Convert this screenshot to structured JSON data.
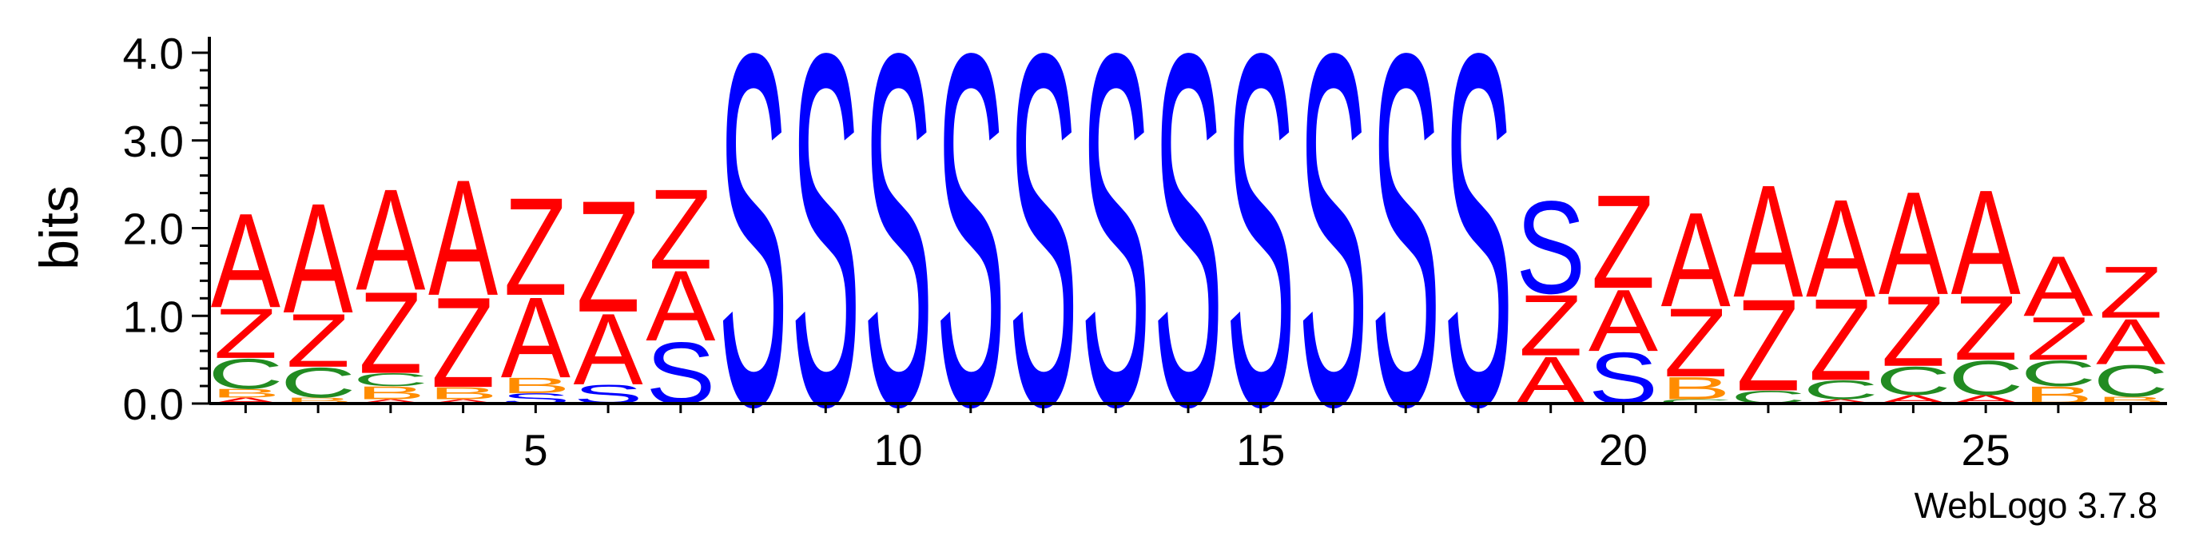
{
  "chart_data": {
    "type": "sequence-logo",
    "title": "",
    "xlabel": "",
    "ylabel": "bits",
    "ylim": [
      0,
      4.0
    ],
    "y_ticks": [
      "0.0",
      "1.0",
      "2.0",
      "3.0",
      "4.0"
    ],
    "x_range": [
      1,
      27
    ],
    "x_ticks": [
      "5",
      "10",
      "15",
      "20",
      "25"
    ],
    "colors": {
      "A": "#ff0000",
      "Z": "#ff0000",
      "S": "#0000ff",
      "C": "#228b22",
      "B": "#ff8c00"
    },
    "positions": [
      {
        "pos": 1,
        "stack": [
          {
            "letter": "A",
            "bits": 0.07
          },
          {
            "letter": "B",
            "bits": 0.1
          },
          {
            "letter": "C",
            "bits": 0.35
          },
          {
            "letter": "Z",
            "bits": 0.58
          },
          {
            "letter": "A",
            "bits": 1.1
          }
        ]
      },
      {
        "pos": 2,
        "stack": [
          {
            "letter": "B",
            "bits": 0.07
          },
          {
            "letter": "C",
            "bits": 0.35
          },
          {
            "letter": "Z",
            "bits": 0.62
          },
          {
            "letter": "A",
            "bits": 1.28
          }
        ]
      },
      {
        "pos": 3,
        "stack": [
          {
            "letter": "A",
            "bits": 0.05
          },
          {
            "letter": "B",
            "bits": 0.15
          },
          {
            "letter": "C",
            "bits": 0.15
          },
          {
            "letter": "Z",
            "bits": 0.95
          },
          {
            "letter": "A",
            "bits": 1.18
          }
        ]
      },
      {
        "pos": 4,
        "stack": [
          {
            "letter": "A",
            "bits": 0.05
          },
          {
            "letter": "B",
            "bits": 0.14
          },
          {
            "letter": "Z",
            "bits": 1.05
          },
          {
            "letter": "A",
            "bits": 1.35
          }
        ]
      },
      {
        "pos": 5,
        "stack": [
          {
            "letter": "S",
            "bits": 0.12
          },
          {
            "letter": "B",
            "bits": 0.18
          },
          {
            "letter": "A",
            "bits": 0.94
          },
          {
            "letter": "Z",
            "bits": 1.14
          }
        ]
      },
      {
        "pos": 6,
        "stack": [
          {
            "letter": "S",
            "bits": 0.22
          },
          {
            "letter": "A",
            "bits": 0.83
          },
          {
            "letter": "Z",
            "bits": 1.3
          }
        ]
      },
      {
        "pos": 7,
        "stack": [
          {
            "letter": "S",
            "bits": 0.72
          },
          {
            "letter": "A",
            "bits": 0.82
          },
          {
            "letter": "Z",
            "bits": 0.93
          }
        ]
      },
      {
        "pos": 8,
        "stack": [
          {
            "letter": "S",
            "bits": 4.1
          }
        ]
      },
      {
        "pos": 9,
        "stack": [
          {
            "letter": "S",
            "bits": 4.1
          }
        ]
      },
      {
        "pos": 10,
        "stack": [
          {
            "letter": "S",
            "bits": 4.1
          }
        ]
      },
      {
        "pos": 11,
        "stack": [
          {
            "letter": "S",
            "bits": 4.1
          }
        ]
      },
      {
        "pos": 12,
        "stack": [
          {
            "letter": "S",
            "bits": 4.1
          }
        ]
      },
      {
        "pos": 13,
        "stack": [
          {
            "letter": "S",
            "bits": 4.1
          }
        ]
      },
      {
        "pos": 14,
        "stack": [
          {
            "letter": "S",
            "bits": 4.1
          }
        ]
      },
      {
        "pos": 15,
        "stack": [
          {
            "letter": "S",
            "bits": 4.1
          }
        ]
      },
      {
        "pos": 16,
        "stack": [
          {
            "letter": "S",
            "bits": 4.1
          }
        ]
      },
      {
        "pos": 17,
        "stack": [
          {
            "letter": "S",
            "bits": 4.1
          }
        ]
      },
      {
        "pos": 18,
        "stack": [
          {
            "letter": "S",
            "bits": 4.1
          }
        ]
      },
      {
        "pos": 19,
        "stack": [
          {
            "letter": "A",
            "bits": 0.55
          },
          {
            "letter": "Z",
            "bits": 0.71
          },
          {
            "letter": "S",
            "bits": 1.08
          }
        ]
      },
      {
        "pos": 20,
        "stack": [
          {
            "letter": "S",
            "bits": 0.6
          },
          {
            "letter": "A",
            "bits": 0.72
          },
          {
            "letter": "Z",
            "bits": 1.09
          }
        ]
      },
      {
        "pos": 21,
        "stack": [
          {
            "letter": "C",
            "bits": 0.05
          },
          {
            "letter": "B",
            "bits": 0.26
          },
          {
            "letter": "Z",
            "bits": 0.8
          },
          {
            "letter": "A",
            "bits": 1.1
          }
        ]
      },
      {
        "pos": 22,
        "stack": [
          {
            "letter": "C",
            "bits": 0.15
          },
          {
            "letter": "Z",
            "bits": 1.07
          },
          {
            "letter": "A",
            "bits": 1.31
          }
        ]
      },
      {
        "pos": 23,
        "stack": [
          {
            "letter": "A",
            "bits": 0.05
          },
          {
            "letter": "C",
            "bits": 0.22
          },
          {
            "letter": "Z",
            "bits": 0.95
          },
          {
            "letter": "A",
            "bits": 1.14
          }
        ]
      },
      {
        "pos": 24,
        "stack": [
          {
            "letter": "A",
            "bits": 0.1
          },
          {
            "letter": "C",
            "bits": 0.33
          },
          {
            "letter": "Z",
            "bits": 0.82
          },
          {
            "letter": "A",
            "bits": 1.2
          }
        ]
      },
      {
        "pos": 25,
        "stack": [
          {
            "letter": "A",
            "bits": 0.1
          },
          {
            "letter": "C",
            "bits": 0.4
          },
          {
            "letter": "Z",
            "bits": 0.75
          },
          {
            "letter": "A",
            "bits": 1.22
          }
        ]
      },
      {
        "pos": 26,
        "stack": [
          {
            "letter": "B",
            "bits": 0.2
          },
          {
            "letter": "C",
            "bits": 0.3
          },
          {
            "letter": "Z",
            "bits": 0.5
          },
          {
            "letter": "A",
            "bits": 0.7
          }
        ]
      },
      {
        "pos": 27,
        "stack": [
          {
            "letter": "B",
            "bits": 0.08
          },
          {
            "letter": "C",
            "bits": 0.37
          },
          {
            "letter": "A",
            "bits": 0.53
          },
          {
            "letter": "Z",
            "bits": 0.6
          }
        ]
      }
    ]
  },
  "footer": {
    "credit": "WebLogo 3.7.8"
  }
}
